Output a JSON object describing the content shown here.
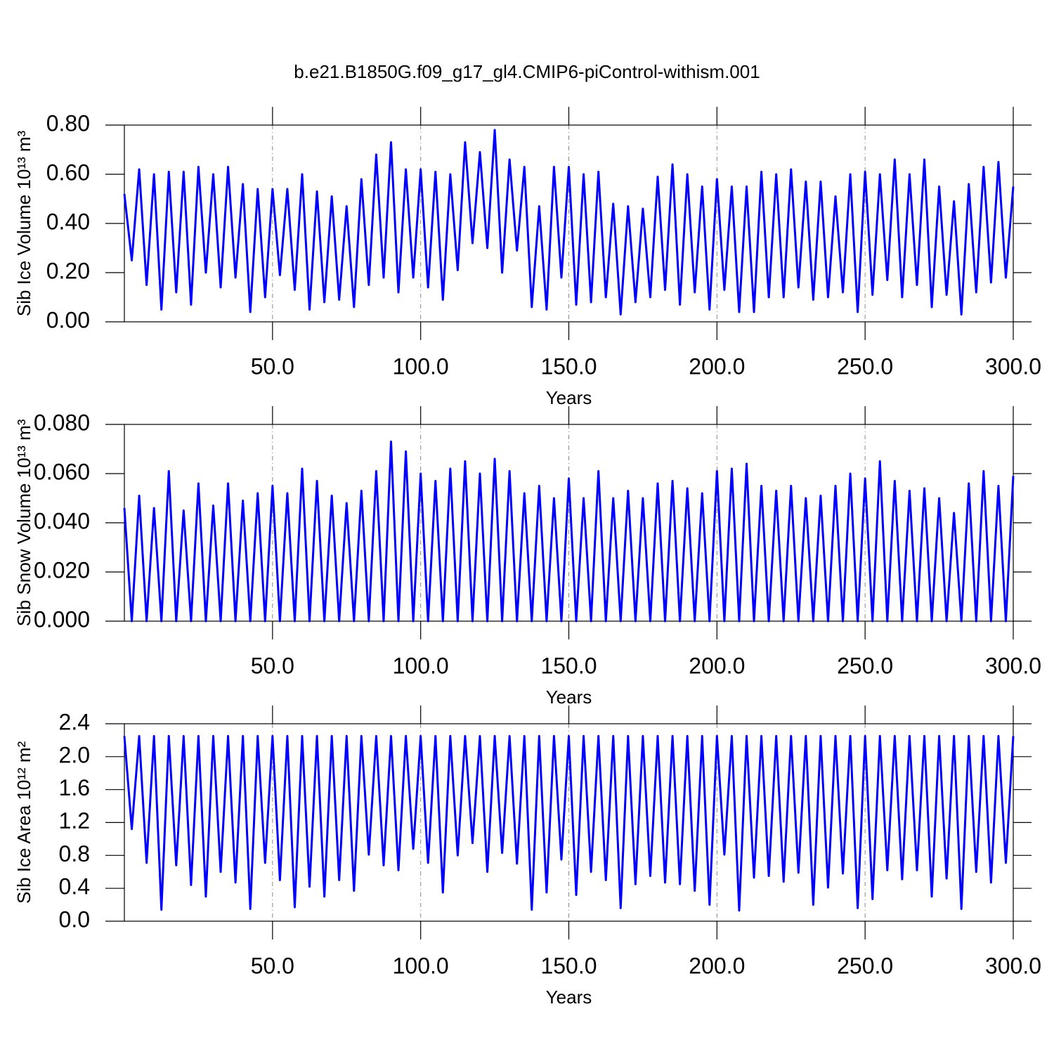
{
  "chart_data": [
    {
      "type": "line",
      "title": "b.e21.B1850G.f09_g17_gl4.CMIP6-piControl-withism.001",
      "xlabel": "Years",
      "ylabel": "Sib Ice Volume 10¹³ m³",
      "color": "#0000ff",
      "grid": true,
      "xlim": [
        0,
        300
      ],
      "ylim": [
        0,
        0.8
      ],
      "xticks": [
        {
          "value": 50,
          "label": "50.0"
        },
        {
          "value": 100,
          "label": "100.0"
        },
        {
          "value": 150,
          "label": "150.0"
        },
        {
          "value": 200,
          "label": "200.0"
        },
        {
          "value": 250,
          "label": "250.0"
        },
        {
          "value": 300,
          "label": "300.0"
        }
      ],
      "yticks": [
        {
          "value": 0,
          "label": "0.00"
        },
        {
          "value": 0.2,
          "label": "0.20"
        },
        {
          "value": 0.4,
          "label": "0.40"
        },
        {
          "value": 0.6,
          "label": "0.60"
        },
        {
          "value": 0.8,
          "label": "0.80"
        }
      ],
      "x": [
        0,
        2.5,
        5,
        7.5,
        10,
        12.5,
        15,
        17.5,
        20,
        22.5,
        25,
        27.5,
        30,
        32.5,
        35,
        37.5,
        40,
        42.5,
        45,
        47.5,
        50,
        52.5,
        55,
        57.5,
        60,
        62.5,
        65,
        67.5,
        70,
        72.5,
        75,
        77.5,
        80,
        82.5,
        85,
        87.5,
        90,
        92.5,
        95,
        97.5,
        100,
        102.5,
        105,
        107.5,
        110,
        112.5,
        115,
        117.5,
        120,
        122.5,
        125,
        127.5,
        130,
        132.5,
        135,
        137.5,
        140,
        142.5,
        145,
        147.5,
        150,
        152.5,
        155,
        157.5,
        160,
        162.5,
        165,
        167.5,
        170,
        172.5,
        175,
        177.5,
        180,
        182.5,
        185,
        187.5,
        190,
        192.5,
        195,
        197.5,
        200,
        202.5,
        205,
        207.5,
        210,
        212.5,
        215,
        217.5,
        220,
        222.5,
        225,
        227.5,
        230,
        232.5,
        235,
        237.5,
        240,
        242.5,
        245,
        247.5,
        250,
        252.5,
        255,
        257.5,
        260,
        262.5,
        265,
        267.5,
        270,
        272.5,
        275,
        277.5,
        280,
        282.5,
        285,
        287.5,
        290,
        292.5,
        295,
        297.5,
        300
      ],
      "values": [
        0.52,
        0.25,
        0.62,
        0.15,
        0.6,
        0.05,
        0.61,
        0.12,
        0.61,
        0.07,
        0.63,
        0.2,
        0.6,
        0.14,
        0.63,
        0.18,
        0.56,
        0.04,
        0.54,
        0.1,
        0.54,
        0.19,
        0.54,
        0.13,
        0.6,
        0.05,
        0.53,
        0.08,
        0.51,
        0.09,
        0.47,
        0.06,
        0.58,
        0.15,
        0.68,
        0.18,
        0.73,
        0.12,
        0.62,
        0.18,
        0.62,
        0.14,
        0.61,
        0.09,
        0.6,
        0.21,
        0.73,
        0.32,
        0.69,
        0.3,
        0.78,
        0.2,
        0.66,
        0.29,
        0.63,
        0.06,
        0.47,
        0.05,
        0.63,
        0.18,
        0.63,
        0.07,
        0.6,
        0.08,
        0.61,
        0.1,
        0.48,
        0.03,
        0.47,
        0.08,
        0.46,
        0.1,
        0.59,
        0.13,
        0.64,
        0.07,
        0.6,
        0.12,
        0.55,
        0.05,
        0.58,
        0.13,
        0.55,
        0.04,
        0.55,
        0.04,
        0.61,
        0.1,
        0.6,
        0.1,
        0.62,
        0.14,
        0.57,
        0.09,
        0.57,
        0.1,
        0.51,
        0.12,
        0.6,
        0.04,
        0.61,
        0.11,
        0.6,
        0.17,
        0.66,
        0.1,
        0.6,
        0.15,
        0.66,
        0.06,
        0.55,
        0.11,
        0.49,
        0.03,
        0.56,
        0.12,
        0.63,
        0.16,
        0.65,
        0.18,
        0.55
      ]
    },
    {
      "type": "line",
      "xlabel": "Years",
      "ylabel": "Sib Snow Volume 10¹³ m³",
      "color": "#0000ff",
      "grid": true,
      "xlim": [
        0,
        300
      ],
      "ylim": [
        0,
        0.08
      ],
      "xticks": [
        {
          "value": 50,
          "label": "50.0"
        },
        {
          "value": 100,
          "label": "100.0"
        },
        {
          "value": 150,
          "label": "150.0"
        },
        {
          "value": 200,
          "label": "200.0"
        },
        {
          "value": 250,
          "label": "250.0"
        },
        {
          "value": 300,
          "label": "300.0"
        }
      ],
      "yticks": [
        {
          "value": 0,
          "label": "0.000"
        },
        {
          "value": 0.02,
          "label": "0.020"
        },
        {
          "value": 0.04,
          "label": "0.040"
        },
        {
          "value": 0.06,
          "label": "0.060"
        },
        {
          "value": 0.08,
          "label": "0.080"
        }
      ],
      "x": [
        0,
        2.5,
        5,
        7.5,
        10,
        12.5,
        15,
        17.5,
        20,
        22.5,
        25,
        27.5,
        30,
        32.5,
        35,
        37.5,
        40,
        42.5,
        45,
        47.5,
        50,
        52.5,
        55,
        57.5,
        60,
        62.5,
        65,
        67.5,
        70,
        72.5,
        75,
        77.5,
        80,
        82.5,
        85,
        87.5,
        90,
        92.5,
        95,
        97.5,
        100,
        102.5,
        105,
        107.5,
        110,
        112.5,
        115,
        117.5,
        120,
        122.5,
        125,
        127.5,
        130,
        132.5,
        135,
        137.5,
        140,
        142.5,
        145,
        147.5,
        150,
        152.5,
        155,
        157.5,
        160,
        162.5,
        165,
        167.5,
        170,
        172.5,
        175,
        177.5,
        180,
        182.5,
        185,
        187.5,
        190,
        192.5,
        195,
        197.5,
        200,
        202.5,
        205,
        207.5,
        210,
        212.5,
        215,
        217.5,
        220,
        222.5,
        225,
        227.5,
        230,
        232.5,
        235,
        237.5,
        240,
        242.5,
        245,
        247.5,
        250,
        252.5,
        255,
        257.5,
        260,
        262.5,
        265,
        267.5,
        270,
        272.5,
        275,
        277.5,
        280,
        282.5,
        285,
        287.5,
        290,
        292.5,
        295,
        297.5,
        300
      ],
      "values": [
        0.046,
        0,
        0.051,
        0,
        0.046,
        0,
        0.061,
        0,
        0.045,
        0,
        0.056,
        0,
        0.047,
        0,
        0.056,
        0,
        0.049,
        0,
        0.052,
        0,
        0.055,
        0,
        0.052,
        0,
        0.062,
        0,
        0.057,
        0,
        0.051,
        0,
        0.048,
        0,
        0.053,
        0,
        0.061,
        0,
        0.073,
        0,
        0.069,
        0,
        0.06,
        0,
        0.057,
        0,
        0.062,
        0,
        0.065,
        0,
        0.06,
        0,
        0.066,
        0,
        0.061,
        0,
        0.052,
        0,
        0.055,
        0,
        0.05,
        0,
        0.058,
        0,
        0.05,
        0,
        0.061,
        0,
        0.05,
        0,
        0.053,
        0,
        0.05,
        0,
        0.056,
        0,
        0.057,
        0,
        0.054,
        0,
        0.052,
        0,
        0.061,
        0,
        0.062,
        0,
        0.064,
        0,
        0.055,
        0,
        0.053,
        0,
        0.055,
        0,
        0.05,
        0,
        0.051,
        0,
        0.055,
        0,
        0.06,
        0,
        0.058,
        0,
        0.065,
        0,
        0.057,
        0,
        0.053,
        0,
        0.054,
        0,
        0.05,
        0,
        0.044,
        0,
        0.056,
        0,
        0.061,
        0,
        0.055,
        0,
        0.059
      ]
    },
    {
      "type": "line",
      "xlabel": "Years",
      "ylabel": "Sib Ice Area 10¹² m²",
      "color": "#0000ff",
      "grid": true,
      "xlim": [
        0,
        300
      ],
      "ylim": [
        0,
        2.4
      ],
      "xticks": [
        {
          "value": 50,
          "label": "50.0"
        },
        {
          "value": 100,
          "label": "100.0"
        },
        {
          "value": 150,
          "label": "150.0"
        },
        {
          "value": 200,
          "label": "200.0"
        },
        {
          "value": 250,
          "label": "250.0"
        },
        {
          "value": 300,
          "label": "300.0"
        }
      ],
      "yticks": [
        {
          "value": 0,
          "label": "0.0"
        },
        0.4,
        0.8,
        1.2,
        1.6,
        {
          "value": 2,
          "label": "2.0"
        },
        2.4
      ],
      "x": [
        0,
        2.5,
        5,
        7.5,
        10,
        12.5,
        15,
        17.5,
        20,
        22.5,
        25,
        27.5,
        30,
        32.5,
        35,
        37.5,
        40,
        42.5,
        45,
        47.5,
        50,
        52.5,
        55,
        57.5,
        60,
        62.5,
        65,
        67.5,
        70,
        72.5,
        75,
        77.5,
        80,
        82.5,
        85,
        87.5,
        90,
        92.5,
        95,
        97.5,
        100,
        102.5,
        105,
        107.5,
        110,
        112.5,
        115,
        117.5,
        120,
        122.5,
        125,
        127.5,
        130,
        132.5,
        135,
        137.5,
        140,
        142.5,
        145,
        147.5,
        150,
        152.5,
        155,
        157.5,
        160,
        162.5,
        165,
        167.5,
        170,
        172.5,
        175,
        177.5,
        180,
        182.5,
        185,
        187.5,
        190,
        192.5,
        195,
        197.5,
        200,
        202.5,
        205,
        207.5,
        210,
        212.5,
        215,
        217.5,
        220,
        222.5,
        225,
        227.5,
        230,
        232.5,
        235,
        237.5,
        240,
        242.5,
        245,
        247.5,
        250,
        252.5,
        255,
        257.5,
        260,
        262.5,
        265,
        267.5,
        270,
        272.5,
        275,
        277.5,
        280,
        282.5,
        285,
        287.5,
        290,
        292.5,
        295,
        297.5,
        300
      ],
      "values": [
        2.25,
        1.12,
        2.25,
        0.71,
        2.25,
        0.14,
        2.25,
        0.68,
        2.25,
        0.44,
        2.25,
        0.3,
        2.25,
        0.6,
        2.25,
        0.47,
        2.25,
        0.15,
        2.25,
        0.71,
        2.25,
        0.5,
        2.25,
        0.17,
        2.25,
        0.42,
        2.25,
        0.3,
        2.25,
        0.5,
        2.25,
        0.37,
        2.25,
        0.81,
        2.25,
        0.68,
        2.25,
        0.62,
        2.25,
        0.88,
        2.25,
        0.71,
        2.25,
        0.35,
        2.25,
        0.8,
        2.25,
        0.95,
        2.25,
        0.6,
        2.25,
        0.83,
        2.25,
        0.7,
        2.25,
        0.14,
        2.25,
        0.35,
        2.25,
        0.75,
        2.25,
        0.32,
        2.25,
        0.6,
        2.25,
        0.5,
        2.25,
        0.16,
        2.25,
        0.45,
        2.25,
        0.55,
        2.25,
        0.47,
        2.25,
        0.45,
        2.25,
        0.37,
        2.25,
        0.2,
        2.25,
        0.81,
        2.25,
        0.13,
        2.25,
        0.53,
        2.25,
        0.55,
        2.25,
        0.48,
        2.25,
        0.59,
        2.25,
        0.2,
        2.25,
        0.41,
        2.25,
        0.58,
        2.25,
        0.16,
        2.25,
        0.27,
        2.25,
        0.62,
        2.25,
        0.51,
        2.25,
        0.62,
        2.25,
        0.3,
        2.25,
        0.52,
        2.25,
        0.15,
        2.25,
        0.6,
        2.25,
        0.47,
        2.25,
        0.71,
        2.25
      ]
    }
  ]
}
